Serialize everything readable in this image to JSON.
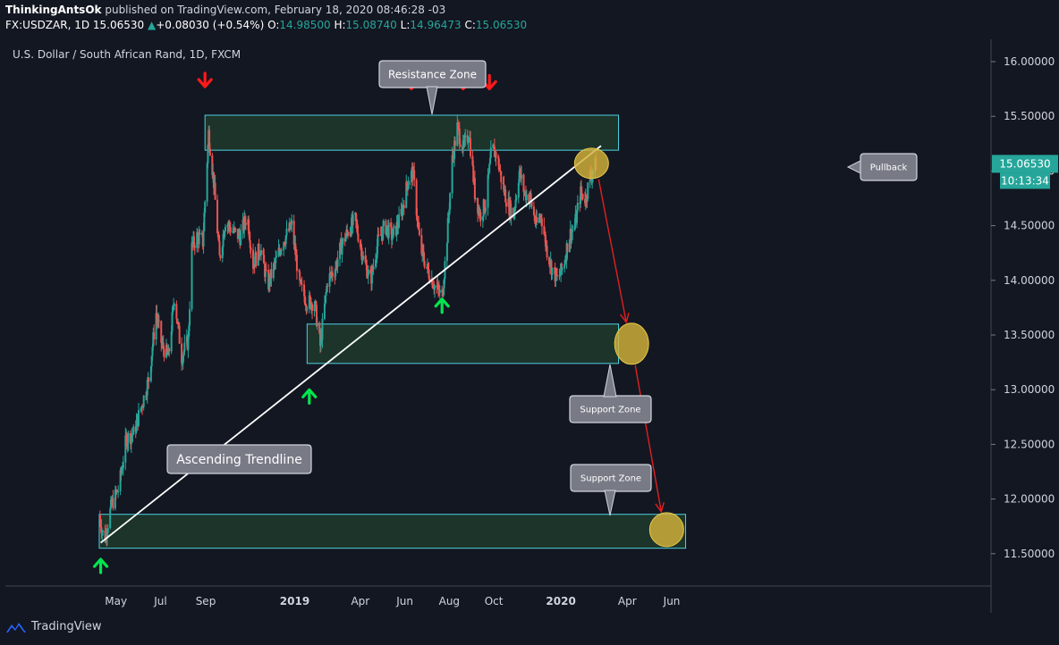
{
  "header": {
    "author": "ThinkingAntsOk",
    "published": "published on TradingView.com, February 18, 2020 08:46:28 -03",
    "symbol": "FX:USDZAR, 1D",
    "last": "15.06530",
    "change": "+0.08030 (+0.54%)",
    "o_label": "O:",
    "o": "14.98500",
    "h_label": "H:",
    "h": "15.08740",
    "l_label": "L:",
    "l": "14.96473",
    "c_label": "C:",
    "c": "15.06530"
  },
  "footer": {
    "brand": "TradingView"
  },
  "colors": {
    "background": "#131722",
    "up": "#26a69a",
    "down": "#ef5350",
    "zone_fill": "#1f3a2c",
    "zone_border": "#4dd0e1",
    "trendline": "#ffffff",
    "arrow_red": "#ff1a1a",
    "arrow_green": "#00e64d",
    "target_circle": "#d4b23a",
    "path_line": "#e02020"
  },
  "chart_data": {
    "type": "candlestick",
    "title": "U.S. Dollar / South African Rand, 1D, FXCM",
    "ylim": [
      11.35,
      16.2
    ],
    "y_ticks": [
      "16.00000",
      "15.50000",
      "15.00000",
      "14.50000",
      "14.00000",
      "13.50000",
      "13.00000",
      "12.50000",
      "12.00000",
      "11.50000"
    ],
    "x_ticks": [
      "May",
      "Jul",
      "Sep",
      "2019",
      "Apr",
      "Jun",
      "Aug",
      "Oct",
      "2020",
      "Apr",
      "Jun"
    ],
    "last_price_label": "15.06530",
    "countdown_label": "10:13:34",
    "close_path": [
      [
        "2018-04-08",
        11.85
      ],
      [
        "2018-04-15",
        11.62
      ],
      [
        "2018-04-25",
        11.95
      ],
      [
        "2018-05-05",
        12.1
      ],
      [
        "2018-05-15",
        12.55
      ],
      [
        "2018-05-25",
        12.6
      ],
      [
        "2018-06-05",
        12.85
      ],
      [
        "2018-06-15",
        13.1
      ],
      [
        "2018-06-25",
        13.7
      ],
      [
        "2018-07-03",
        13.4
      ],
      [
        "2018-07-12",
        13.3
      ],
      [
        "2018-07-20",
        13.85
      ],
      [
        "2018-07-30",
        13.3
      ],
      [
        "2018-08-08",
        13.45
      ],
      [
        "2018-08-13",
        14.3
      ],
      [
        "2018-08-20",
        14.4
      ],
      [
        "2018-08-28",
        14.35
      ],
      [
        "2018-09-05",
        15.35
      ],
      [
        "2018-09-12",
        14.9
      ],
      [
        "2018-09-20",
        14.2
      ],
      [
        "2018-09-28",
        14.55
      ],
      [
        "2018-10-08",
        14.45
      ],
      [
        "2018-10-18",
        14.4
      ],
      [
        "2018-10-28",
        14.6
      ],
      [
        "2018-11-05",
        14.15
      ],
      [
        "2018-11-15",
        14.3
      ],
      [
        "2018-11-25",
        13.95
      ],
      [
        "2018-12-05",
        14.15
      ],
      [
        "2018-12-15",
        14.35
      ],
      [
        "2018-12-28",
        14.5
      ],
      [
        "2019-01-08",
        13.95
      ],
      [
        "2019-01-18",
        13.8
      ],
      [
        "2019-01-28",
        13.8
      ],
      [
        "2019-02-05",
        13.4
      ],
      [
        "2019-02-15",
        14.0
      ],
      [
        "2019-02-25",
        14.1
      ],
      [
        "2019-03-05",
        14.3
      ],
      [
        "2019-03-15",
        14.45
      ],
      [
        "2019-03-25",
        14.55
      ],
      [
        "2019-04-05",
        14.2
      ],
      [
        "2019-04-15",
        14.0
      ],
      [
        "2019-04-25",
        14.35
      ],
      [
        "2019-05-05",
        14.5
      ],
      [
        "2019-05-15",
        14.4
      ],
      [
        "2019-05-25",
        14.55
      ],
      [
        "2019-06-05",
        14.9
      ],
      [
        "2019-06-12",
        15.0
      ],
      [
        "2019-06-22",
        14.3
      ],
      [
        "2019-07-02",
        14.1
      ],
      [
        "2019-07-12",
        13.95
      ],
      [
        "2019-07-22",
        13.85
      ],
      [
        "2019-07-28",
        14.3
      ],
      [
        "2019-08-05",
        15.1
      ],
      [
        "2019-08-12",
        15.4
      ],
      [
        "2019-08-20",
        15.2
      ],
      [
        "2019-08-28",
        15.35
      ],
      [
        "2019-09-05",
        14.8
      ],
      [
        "2019-09-12",
        14.6
      ],
      [
        "2019-09-20",
        14.7
      ],
      [
        "2019-09-28",
        15.2
      ],
      [
        "2019-10-05",
        15.15
      ],
      [
        "2019-10-12",
        14.9
      ],
      [
        "2019-10-20",
        14.7
      ],
      [
        "2019-10-28",
        14.6
      ],
      [
        "2019-11-05",
        15.0
      ],
      [
        "2019-11-12",
        14.8
      ],
      [
        "2019-11-20",
        14.75
      ],
      [
        "2019-11-28",
        14.5
      ],
      [
        "2019-12-05",
        14.6
      ],
      [
        "2019-12-12",
        14.3
      ],
      [
        "2019-12-20",
        14.1
      ],
      [
        "2019-12-28",
        14.0
      ],
      [
        "2020-01-05",
        14.15
      ],
      [
        "2020-01-12",
        14.4
      ],
      [
        "2020-01-20",
        14.5
      ],
      [
        "2020-01-28",
        14.8
      ],
      [
        "2020-02-04",
        14.75
      ],
      [
        "2020-02-10",
        14.95
      ],
      [
        "2020-02-18",
        15.06
      ]
    ],
    "annotations": {
      "resistance_zone": {
        "label": "Resistance Zone",
        "from": "2018-08-31",
        "to": "2020-03-20",
        "low": 15.19,
        "high": 15.51
      },
      "support_zone_1": {
        "label": "Support Zone",
        "from": "2019-01-18",
        "to": "2020-03-20",
        "low": 13.24,
        "high": 13.6
      },
      "support_zone_2": {
        "label": "Support Zone",
        "from": "2018-04-08",
        "to": "2020-06-20",
        "low": 11.55,
        "high": 11.86
      },
      "trendline": {
        "label": "Ascending Trendline",
        "from": [
          "2018-04-10",
          11.6
        ],
        "to": [
          "2020-02-25",
          15.23
        ]
      },
      "pullback_label": "Pullback",
      "targets": [
        [
          "2020-02-12",
          15.07
        ],
        [
          "2020-04-07",
          13.42
        ],
        [
          "2020-05-25",
          11.72
        ]
      ],
      "red_down_arrows": [
        [
          "2018-08-31",
          15.82
        ],
        [
          "2019-06-10",
          15.8
        ],
        [
          "2019-08-20",
          15.8
        ],
        [
          "2019-09-25",
          15.8
        ]
      ],
      "green_up_arrows": [
        [
          "2018-04-10",
          11.4
        ],
        [
          "2019-01-21",
          12.95
        ],
        [
          "2019-07-22",
          13.78
        ]
      ]
    }
  }
}
